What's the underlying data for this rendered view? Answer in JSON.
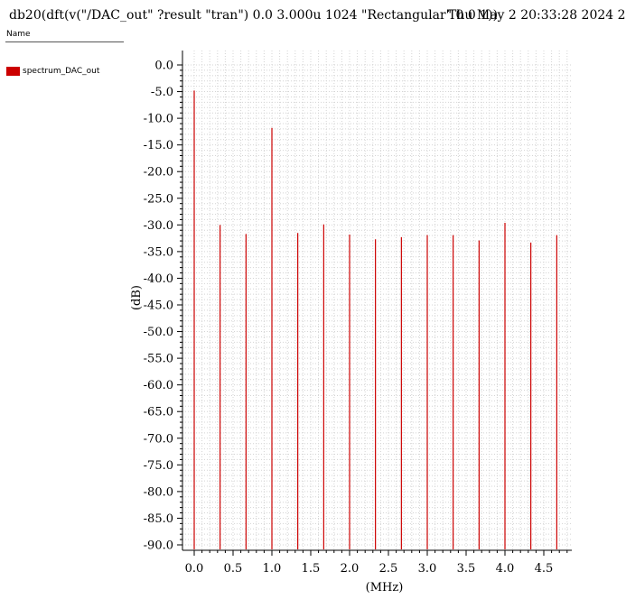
{
  "header": {
    "expression": "db20(dft(v(\"/DAC_out\" ?result \"tran\")  0.0 3.000u 1024 \"Rectangular\" 0 0 1))",
    "datetime": "Thu May 2 20:33:28 2024  2"
  },
  "legend": {
    "title": "Name",
    "items": [
      {
        "label": "spectrum_DAC_out",
        "color": "#cc0000"
      }
    ]
  },
  "chart_data": {
    "type": "bar",
    "xlabel": "(MHz)",
    "ylabel": "(dB)",
    "xlim": [
      0.0,
      4.8
    ],
    "ylim": [
      -90.0,
      0.0
    ],
    "grid": true,
    "legend_position": "left",
    "x_ticks": [
      "0.0",
      "0.5",
      "1.0",
      "1.5",
      "2.0",
      "2.5",
      "3.0",
      "3.5",
      "4.0",
      "4.5"
    ],
    "y_ticks": [
      "0.0",
      "-5.0",
      "-10.0",
      "-15.0",
      "-20.0",
      "-25.0",
      "-30.0",
      "-35.0",
      "-40.0",
      "-45.0",
      "-50.0",
      "-55.0",
      "-60.0",
      "-65.0",
      "-70.0",
      "-75.0",
      "-80.0",
      "-85.0",
      "-90.0"
    ],
    "series": [
      {
        "name": "spectrum_DAC_out",
        "color": "#cc0000",
        "x": [
          0.0,
          0.333,
          0.667,
          1.0,
          1.333,
          1.667,
          2.0,
          2.333,
          2.667,
          3.0,
          3.333,
          3.667,
          4.0,
          4.333,
          4.667
        ],
        "y": [
          -4.8,
          -30.0,
          -31.7,
          -11.8,
          -31.5,
          -29.9,
          -31.8,
          -32.7,
          -32.3,
          -31.9,
          -31.9,
          -32.9,
          -29.6,
          -33.3,
          -31.9
        ]
      }
    ]
  }
}
